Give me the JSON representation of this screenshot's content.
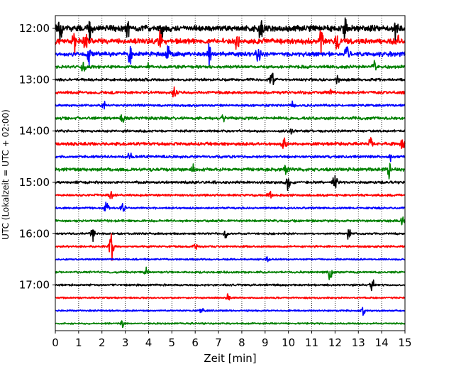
{
  "chart_data": {
    "type": "line",
    "title": "",
    "xlabel": "Zeit  [min]",
    "ylabel": "UTC (Lokalzeit = UTC + 02:00)",
    "xlim": [
      0,
      15
    ],
    "x_ticks": [
      0,
      1,
      2,
      3,
      4,
      5,
      6,
      7,
      8,
      9,
      10,
      11,
      12,
      13,
      14,
      15
    ],
    "x_tick_labels": [
      "0",
      "1",
      "2",
      "3",
      "4",
      "5",
      "6",
      "7",
      "8",
      "9",
      "10",
      "11",
      "12",
      "13",
      "14",
      "15"
    ],
    "y_tick_labels": [
      "12:00",
      "13:00",
      "14:00",
      "15:00",
      "16:00",
      "17:00"
    ],
    "y_tick_rows": [
      0,
      4,
      8,
      12,
      16,
      20
    ],
    "row_minutes": 15,
    "rows_start": "12:00",
    "grid": "vertical-dotted",
    "series_colors": [
      "#000000",
      "#ff0000",
      "#0000ff",
      "#008000"
    ],
    "series": [
      {
        "start": "12:00",
        "color_index": 0,
        "amplitude": 0.95,
        "events": [
          [
            0.2,
            0.8
          ],
          [
            1.5,
            0.9
          ],
          [
            3.1,
            0.6
          ],
          [
            4.6,
            0.7
          ],
          [
            8.8,
            0.8
          ],
          [
            12.4,
            0.9
          ],
          [
            14.6,
            1.0
          ]
        ]
      },
      {
        "start": "12:15",
        "color_index": 1,
        "amplitude": 0.85,
        "events": [
          [
            0.8,
            0.9
          ],
          [
            1.3,
            0.6
          ],
          [
            4.5,
            0.7
          ],
          [
            7.8,
            0.6
          ],
          [
            11.4,
            0.9
          ],
          [
            12.1,
            0.7
          ],
          [
            14.7,
            0.8
          ]
        ]
      },
      {
        "start": "12:30",
        "color_index": 2,
        "amplitude": 0.7,
        "events": [
          [
            1.4,
            1.0
          ],
          [
            3.2,
            0.9
          ],
          [
            4.8,
            1.0
          ],
          [
            6.6,
            0.9
          ],
          [
            8.7,
            0.7
          ],
          [
            12.5,
            0.8
          ]
        ]
      },
      {
        "start": "12:45",
        "color_index": 3,
        "amplitude": 0.45,
        "events": [
          [
            1.2,
            0.4
          ],
          [
            4.0,
            0.3
          ],
          [
            13.7,
            0.5
          ]
        ]
      },
      {
        "start": "13:00",
        "color_index": 0,
        "amplitude": 0.4,
        "events": [
          [
            9.3,
            0.5
          ],
          [
            12.1,
            0.3
          ]
        ]
      },
      {
        "start": "13:15",
        "color_index": 1,
        "amplitude": 0.45,
        "events": [
          [
            5.1,
            0.4
          ],
          [
            11.8,
            0.3
          ]
        ]
      },
      {
        "start": "13:30",
        "color_index": 2,
        "amplitude": 0.35,
        "events": [
          [
            2.1,
            0.3
          ],
          [
            10.2,
            0.3
          ]
        ]
      },
      {
        "start": "13:45",
        "color_index": 3,
        "amplitude": 0.45,
        "events": [
          [
            2.9,
            0.4
          ],
          [
            7.2,
            0.3
          ]
        ]
      },
      {
        "start": "14:00",
        "color_index": 0,
        "amplitude": 0.35,
        "events": [
          [
            10.1,
            0.3
          ]
        ]
      },
      {
        "start": "14:15",
        "color_index": 1,
        "amplitude": 0.5,
        "events": [
          [
            9.8,
            0.6
          ],
          [
            13.5,
            0.5
          ],
          [
            14.9,
            0.6
          ]
        ]
      },
      {
        "start": "14:30",
        "color_index": 2,
        "amplitude": 0.4,
        "events": [
          [
            3.2,
            0.4
          ],
          [
            14.4,
            0.3
          ]
        ]
      },
      {
        "start": "14:45",
        "color_index": 3,
        "amplitude": 0.5,
        "events": [
          [
            5.9,
            0.5
          ],
          [
            9.9,
            0.4
          ],
          [
            14.3,
            0.6
          ]
        ]
      },
      {
        "start": "15:00",
        "color_index": 0,
        "amplitude": 0.4,
        "events": [
          [
            10.0,
            0.6
          ],
          [
            12.0,
            0.8
          ]
        ]
      },
      {
        "start": "15:15",
        "color_index": 1,
        "amplitude": 0.35,
        "events": [
          [
            2.4,
            0.4
          ],
          [
            9.2,
            0.5
          ]
        ]
      },
      {
        "start": "15:30",
        "color_index": 2,
        "amplitude": 0.3,
        "events": [
          [
            2.2,
            0.6
          ],
          [
            2.9,
            0.7
          ]
        ]
      },
      {
        "start": "15:45",
        "color_index": 3,
        "amplitude": 0.35,
        "events": [
          [
            14.9,
            0.5
          ]
        ]
      },
      {
        "start": "16:00",
        "color_index": 0,
        "amplitude": 0.3,
        "events": [
          [
            1.6,
            0.6
          ],
          [
            7.3,
            0.4
          ],
          [
            12.6,
            0.5
          ]
        ]
      },
      {
        "start": "16:15",
        "color_index": 1,
        "amplitude": 0.3,
        "events": [
          [
            2.4,
            1.2
          ],
          [
            6.0,
            0.3
          ]
        ]
      },
      {
        "start": "16:30",
        "color_index": 2,
        "amplitude": 0.25,
        "events": [
          [
            9.1,
            0.3
          ]
        ]
      },
      {
        "start": "16:45",
        "color_index": 3,
        "amplitude": 0.3,
        "events": [
          [
            3.9,
            0.4
          ],
          [
            11.8,
            0.8
          ]
        ]
      },
      {
        "start": "17:00",
        "color_index": 0,
        "amplitude": 0.3,
        "events": [
          [
            13.6,
            0.5
          ]
        ]
      },
      {
        "start": "17:15",
        "color_index": 1,
        "amplitude": 0.25,
        "events": [
          [
            7.4,
            0.4
          ]
        ]
      },
      {
        "start": "17:30",
        "color_index": 2,
        "amplitude": 0.25,
        "events": [
          [
            6.3,
            0.3
          ],
          [
            13.2,
            0.4
          ]
        ]
      },
      {
        "start": "17:45",
        "color_index": 3,
        "amplitude": 0.25,
        "events": [
          [
            2.9,
            0.3
          ]
        ]
      }
    ]
  }
}
